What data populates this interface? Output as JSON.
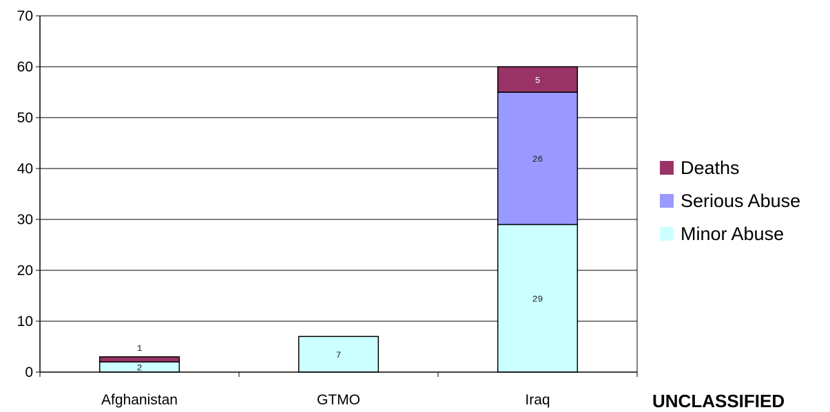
{
  "chart_data": {
    "type": "bar",
    "stacked": true,
    "categories": [
      "Afghanistan",
      "GTMO",
      "Iraq"
    ],
    "series": [
      {
        "name": "Minor Abuse",
        "values": [
          2,
          7,
          29
        ],
        "color": "#CCFFFF",
        "labels": [
          "2",
          "7",
          "29"
        ]
      },
      {
        "name": "Serious Abuse",
        "values": [
          0,
          0,
          26
        ],
        "color": "#9999FF",
        "labels": [
          "",
          "",
          "26"
        ]
      },
      {
        "name": "Deaths",
        "values": [
          1,
          0,
          5
        ],
        "color": "#993366",
        "labels": [
          "1",
          "",
          "5"
        ]
      }
    ],
    "ylim": [
      0,
      70
    ],
    "yticks": [
      0,
      10,
      20,
      30,
      40,
      50,
      60,
      70
    ],
    "grid": true,
    "legend_position": "right",
    "legend_order": [
      "Deaths",
      "Serious Abuse",
      "Minor Abuse"
    ]
  },
  "footer": {
    "marking": "UNCLASSIFIED"
  }
}
